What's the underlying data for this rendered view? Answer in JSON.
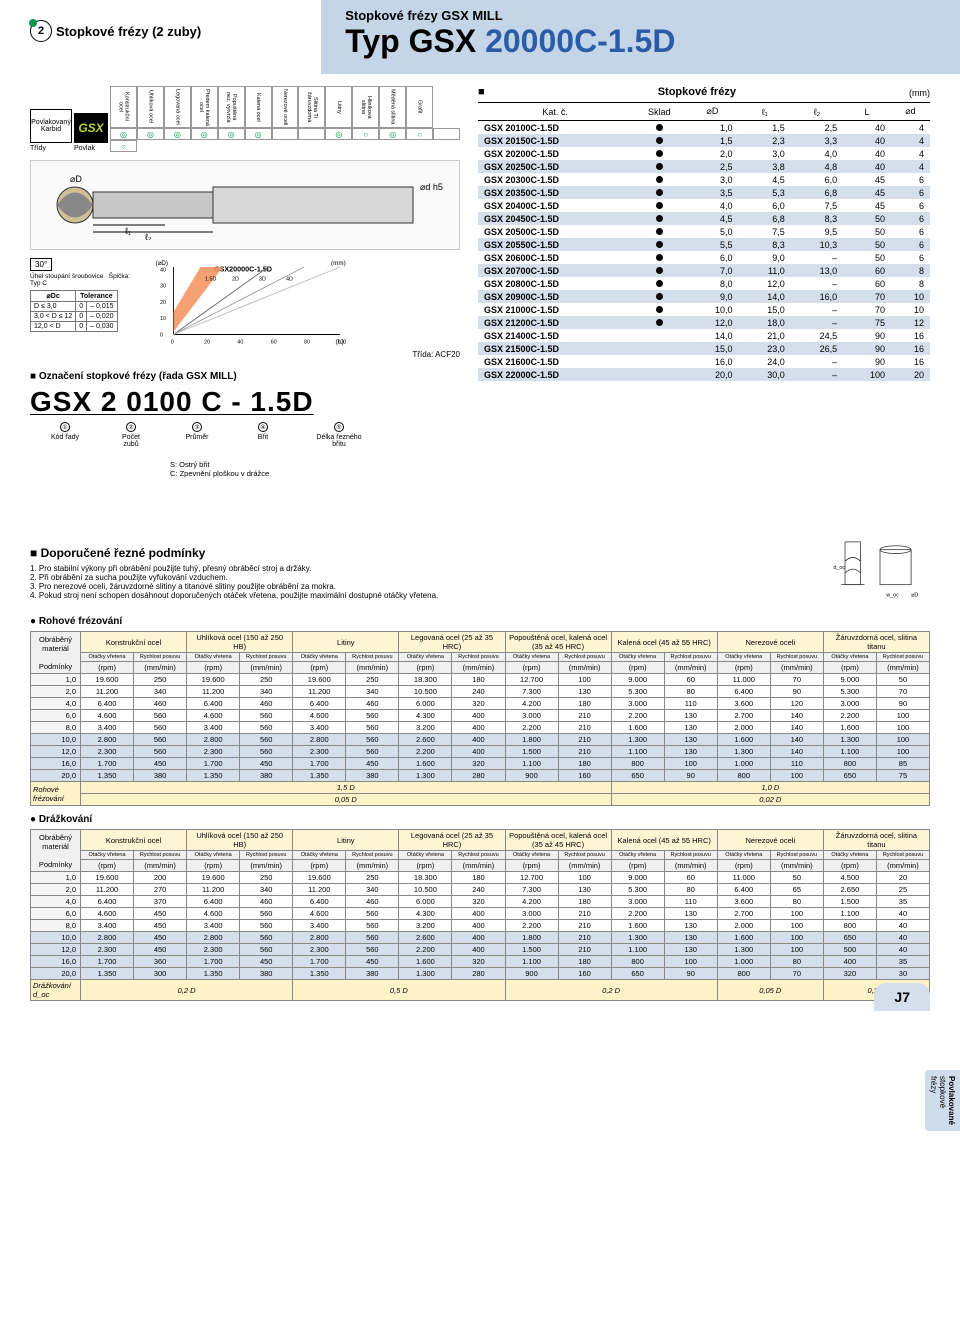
{
  "header": {
    "badge_num": "2",
    "section_title": "Stopkové frézy (2 zuby)",
    "brand_sub": "Stopkové frézy GSX MILL",
    "brand_main_black": "Typ GSX ",
    "brand_main_blue": "20000C-1.5D"
  },
  "materials": {
    "tridy_label": "Třídy",
    "povlak_label": "Povlak",
    "badge_labels": [
      "Povlakovaný",
      "Karbid"
    ],
    "gsx_g": "GS",
    "gsx_x": "X",
    "headers": [
      "Konstrukční ocel",
      "Uhlíková ocel",
      "Legovaná ocel",
      "Předem kalená ocel",
      "Popuštěná nez. vytvrzlá",
      "Kalená ocel",
      "Nerezové oceli",
      "Slitina Ti žáruvzdorná",
      "Litiny",
      "Hliníková slitina",
      "Měděná slitina",
      "Grafit"
    ],
    "sub_row": [
      "",
      "",
      "",
      "",
      "",
      "45-55 HRC",
      "55-60 HRC",
      "60-65 HRC",
      "",
      "",
      "",
      "",
      "",
      ""
    ],
    "circles": [
      "◎",
      "◎",
      "◎",
      "◎",
      "◎",
      "◎",
      "",
      "",
      "◎",
      "○",
      "◎",
      "○",
      "",
      "○"
    ]
  },
  "tool_dims": {
    "d_label": "⌀D",
    "l1": "ℓ₁",
    "l2": "ℓ₂",
    "L_label": "L",
    "dh5": "⌀d h5"
  },
  "tolerance": {
    "angle_label": "30°",
    "helix_label": "Úhel stoupání šroubovice",
    "tip_label": "Špička:",
    "tip_val": "Typ C",
    "dc_label": "⌀Dc",
    "tol_label": "Tolerance",
    "rows": [
      [
        "D ≤ 3,0",
        "0",
        "– 0,015"
      ],
      [
        "3,0 < D ≤ 12",
        "0",
        "– 0,020"
      ],
      [
        "12,0 < D",
        "0",
        "– 0,030"
      ]
    ]
  },
  "chart": {
    "title": "GSX20000C-1.5D",
    "series_1_5d": "1.5D",
    "series_2d": "2D",
    "series_3d": "3D",
    "series_4d": "4D",
    "ylabel": "(⌀D)",
    "xlabel": "(ℓ₁)",
    "unit": "(mm)",
    "yticks": [
      0,
      10,
      20,
      30,
      40
    ],
    "xticks": [
      0,
      20,
      40,
      60,
      80,
      100
    ],
    "band_color": "#f5915a",
    "line1_color": "#333",
    "line2_color": "#666",
    "line3_color": "#999"
  },
  "trida_line": "Třída: ACF20",
  "designation": {
    "header": "Označení stopkové frézy (řada GSX MILL)",
    "code": "GSX 2 0100 C - 1.5D",
    "parts": [
      {
        "n": "①",
        "l1": "Kód řady",
        "l2": ""
      },
      {
        "n": "②",
        "l1": "Počet",
        "l2": "zubů"
      },
      {
        "n": "③",
        "l1": "Průměr",
        "l2": ""
      },
      {
        "n": "④",
        "l1": "Břit",
        "l2": ""
      },
      {
        "n": "⑤",
        "l1": "Délka řezného",
        "l2": "břitu"
      }
    ],
    "legend_s": "S: Ostrý břit",
    "legend_c": "C: Zpevnění ploškou v drážce"
  },
  "stock": {
    "title": "Stopkové frézy",
    "unit": "(mm)",
    "cols": [
      "Kat. č.",
      "Sklad",
      "⌀D",
      "ℓ₁",
      "ℓ₂",
      "L",
      "⌀d"
    ],
    "rows": [
      {
        "p": "GSX 20100C-1.5D",
        "s": true,
        "d": "1,0",
        "l1": "1,5",
        "l2": "2,5",
        "L": "40",
        "dd": "4",
        "sh": false
      },
      {
        "p": "GSX 20150C-1.5D",
        "s": true,
        "d": "1,5",
        "l1": "2,3",
        "l2": "3,3",
        "L": "40",
        "dd": "4",
        "sh": true
      },
      {
        "p": "GSX 20200C-1.5D",
        "s": true,
        "d": "2,0",
        "l1": "3,0",
        "l2": "4,0",
        "L": "40",
        "dd": "4",
        "sh": false
      },
      {
        "p": "GSX 20250C-1.5D",
        "s": true,
        "d": "2,5",
        "l1": "3,8",
        "l2": "4,8",
        "L": "40",
        "dd": "4",
        "sh": true
      },
      {
        "p": "GSX 20300C-1.5D",
        "s": true,
        "d": "3,0",
        "l1": "4,5",
        "l2": "6,0",
        "L": "45",
        "dd": "6",
        "sh": false
      },
      {
        "p": "GSX 20350C-1.5D",
        "s": true,
        "d": "3,5",
        "l1": "5,3",
        "l2": "6,8",
        "L": "45",
        "dd": "6",
        "sh": true
      },
      {
        "p": "GSX 20400C-1.5D",
        "s": true,
        "d": "4,0",
        "l1": "6,0",
        "l2": "7,5",
        "L": "45",
        "dd": "6",
        "sh": false
      },
      {
        "p": "GSX 20450C-1.5D",
        "s": true,
        "d": "4,5",
        "l1": "6,8",
        "l2": "8,3",
        "L": "50",
        "dd": "6",
        "sh": true
      },
      {
        "p": "GSX 20500C-1.5D",
        "s": true,
        "d": "5,0",
        "l1": "7,5",
        "l2": "9,5",
        "L": "50",
        "dd": "6",
        "sh": false
      },
      {
        "p": "GSX 20550C-1.5D",
        "s": true,
        "d": "5,5",
        "l1": "8,3",
        "l2": "10,3",
        "L": "50",
        "dd": "6",
        "sh": true
      },
      {
        "p": "GSX 20600C-1.5D",
        "s": true,
        "d": "6,0",
        "l1": "9,0",
        "l2": "–",
        "L": "50",
        "dd": "6",
        "sh": false
      },
      {
        "p": "GSX 20700C-1.5D",
        "s": true,
        "d": "7,0",
        "l1": "11,0",
        "l2": "13,0",
        "L": "60",
        "dd": "8",
        "sh": true
      },
      {
        "p": "GSX 20800C-1.5D",
        "s": true,
        "d": "8,0",
        "l1": "12,0",
        "l2": "–",
        "L": "60",
        "dd": "8",
        "sh": false
      },
      {
        "p": "GSX 20900C-1.5D",
        "s": true,
        "d": "9,0",
        "l1": "14,0",
        "l2": "16,0",
        "L": "70",
        "dd": "10",
        "sh": true
      },
      {
        "p": "GSX 21000C-1.5D",
        "s": true,
        "d": "10,0",
        "l1": "15,0",
        "l2": "–",
        "L": "70",
        "dd": "10",
        "sh": false
      },
      {
        "p": "GSX 21200C-1.5D",
        "s": true,
        "d": "12,0",
        "l1": "18,0",
        "l2": "–",
        "L": "75",
        "dd": "12",
        "sh": true
      },
      {
        "p": "GSX 21400C-1.5D",
        "s": false,
        "d": "14,0",
        "l1": "21,0",
        "l2": "24,5",
        "L": "90",
        "dd": "16",
        "sh": false
      },
      {
        "p": "GSX 21500C-1.5D",
        "s": false,
        "d": "15,0",
        "l1": "23,0",
        "l2": "26,5",
        "L": "90",
        "dd": "16",
        "sh": true
      },
      {
        "p": "GSX 21600C-1.5D",
        "s": false,
        "d": "16,0",
        "l1": "24,0",
        "l2": "–",
        "L": "90",
        "dd": "16",
        "sh": false
      },
      {
        "p": "GSX 22000C-1.5D",
        "s": false,
        "d": "20,0",
        "l1": "30,0",
        "l2": "–",
        "L": "100",
        "dd": "20",
        "sh": true
      }
    ]
  },
  "recommended": {
    "title": "Doporučené řezné podmínky",
    "notes": [
      "1. Pro stabilní výkony při obrábění použijte tuhý, přesný obráběcí stroj a držáky.",
      "2. Při obrábění za sucha použijte vyfukování vzduchem.",
      "3. Pro nerezové oceli, žáruvzdorné slitiny a titanové slitiny použijte obrábění za mokra.",
      "4. Pokud stroj není schopen dosáhnout doporučených otáček vřetena, použijte maximální dostupné otáčky vřetena."
    ],
    "doc_label": "d_oc",
    "woc_label": "w_oc",
    "dD_label": "⌀D"
  },
  "cut_materials": [
    "Konstrukční ocel",
    "Uhlíková ocel (150 až 250 HB)",
    "Litiny",
    "Legovaná ocel (25 až 35 HRC)",
    "Popouštěná ocel, kalená ocel (35 až 45 HRC)",
    "Kalená ocel (45 až 55 HRC)",
    "Nerezové oceli",
    "Žáruvzdorná ocel, slitina titanu"
  ],
  "cut_labels": {
    "material": "Obráběný materiál",
    "conditions": "Podmínky",
    "dD": "⌀D (mm)",
    "rpm_lbl": "Otáčky vřetena",
    "rpm_unit": "(rpm)",
    "feed_lbl": "Rychlost posuvu",
    "feed_unit": "(mm/min)"
  },
  "corner_milling": {
    "title": "Rohové frézování",
    "footer_left_lbl": "Rohové frézování",
    "doc_lbl": "d_oc",
    "woc_lbl": "w_oc",
    "footer_vals": [
      "1,5 D",
      "1,0 D",
      "0,05 D",
      "0,02 D"
    ],
    "rows": [
      {
        "d": "1,0",
        "v": [
          "19.600",
          "250",
          "19.600",
          "250",
          "19.600",
          "250",
          "18.300",
          "180",
          "12.700",
          "100",
          "9.000",
          "60",
          "11.000",
          "70",
          "9.000",
          "50"
        ],
        "sh": false
      },
      {
        "d": "2,0",
        "v": [
          "11.200",
          "340",
          "11.200",
          "340",
          "11.200",
          "340",
          "10.500",
          "240",
          "7.300",
          "130",
          "5.300",
          "80",
          "6.400",
          "90",
          "5.300",
          "70"
        ],
        "sh": false
      },
      {
        "d": "4,0",
        "v": [
          "6.400",
          "460",
          "6.400",
          "460",
          "6.400",
          "460",
          "6.000",
          "320",
          "4.200",
          "180",
          "3.000",
          "110",
          "3.600",
          "120",
          "3.000",
          "90"
        ],
        "sh": false
      },
      {
        "d": "6,0",
        "v": [
          "4.600",
          "560",
          "4.600",
          "560",
          "4.600",
          "560",
          "4.300",
          "400",
          "3.000",
          "210",
          "2.200",
          "130",
          "2.700",
          "140",
          "2.200",
          "100"
        ],
        "sh": false
      },
      {
        "d": "8,0",
        "v": [
          "3.400",
          "560",
          "3.400",
          "560",
          "3.400",
          "560",
          "3.200",
          "400",
          "2.200",
          "210",
          "1.600",
          "130",
          "2.000",
          "140",
          "1.600",
          "100"
        ],
        "sh": false
      },
      {
        "d": "10,0",
        "v": [
          "2.800",
          "560",
          "2.800",
          "560",
          "2.800",
          "560",
          "2.600",
          "400",
          "1.800",
          "210",
          "1.300",
          "130",
          "1.600",
          "140",
          "1.300",
          "100"
        ],
        "sh": true
      },
      {
        "d": "12,0",
        "v": [
          "2.300",
          "560",
          "2.300",
          "560",
          "2.300",
          "560",
          "2.200",
          "400",
          "1.500",
          "210",
          "1.100",
          "130",
          "1.300",
          "140",
          "1.100",
          "100"
        ],
        "sh": true
      },
      {
        "d": "16,0",
        "v": [
          "1.700",
          "450",
          "1.700",
          "450",
          "1.700",
          "450",
          "1.600",
          "320",
          "1.100",
          "180",
          "800",
          "100",
          "1.000",
          "110",
          "800",
          "85"
        ],
        "sh": true
      },
      {
        "d": "20,0",
        "v": [
          "1.350",
          "380",
          "1.350",
          "380",
          "1.350",
          "380",
          "1.300",
          "280",
          "900",
          "160",
          "650",
          "90",
          "800",
          "100",
          "650",
          "75"
        ],
        "sh": true
      }
    ]
  },
  "slotting": {
    "title": "Drážkování",
    "footer_left_lbl": "Drážkování",
    "doc_lbl": "d_oc",
    "footer_vals": [
      "0,2 D",
      "0,5 D",
      "0,2 D",
      "0,05 D",
      "0,2 D"
    ],
    "footer_spans": [
      2,
      2,
      2,
      1,
      1
    ],
    "rows": [
      {
        "d": "1,0",
        "v": [
          "19.600",
          "200",
          "19.600",
          "250",
          "19.600",
          "250",
          "18.300",
          "180",
          "12.700",
          "100",
          "9.000",
          "60",
          "11.000",
          "50",
          "4.500",
          "20"
        ],
        "sh": false
      },
      {
        "d": "2,0",
        "v": [
          "11.200",
          "270",
          "11.200",
          "340",
          "11.200",
          "340",
          "10.500",
          "240",
          "7.300",
          "130",
          "5.300",
          "80",
          "6.400",
          "65",
          "2.650",
          "25"
        ],
        "sh": false
      },
      {
        "d": "4,0",
        "v": [
          "6.400",
          "370",
          "6.400",
          "460",
          "6.400",
          "460",
          "6.000",
          "320",
          "4.200",
          "180",
          "3.000",
          "110",
          "3.600",
          "80",
          "1.500",
          "35"
        ],
        "sh": false
      },
      {
        "d": "6,0",
        "v": [
          "4.600",
          "450",
          "4.600",
          "560",
          "4.600",
          "560",
          "4.300",
          "400",
          "3.000",
          "210",
          "2.200",
          "130",
          "2.700",
          "100",
          "1.100",
          "40"
        ],
        "sh": false
      },
      {
        "d": "8,0",
        "v": [
          "3.400",
          "450",
          "3.400",
          "560",
          "3.400",
          "560",
          "3.200",
          "400",
          "2.200",
          "210",
          "1.600",
          "130",
          "2.000",
          "100",
          "800",
          "40"
        ],
        "sh": false
      },
      {
        "d": "10,0",
        "v": [
          "2.800",
          "450",
          "2.800",
          "560",
          "2.800",
          "560",
          "2.600",
          "400",
          "1.800",
          "210",
          "1.300",
          "130",
          "1.600",
          "100",
          "650",
          "40"
        ],
        "sh": true
      },
      {
        "d": "12,0",
        "v": [
          "2.300",
          "450",
          "2.300",
          "560",
          "2.300",
          "560",
          "2.200",
          "400",
          "1.500",
          "210",
          "1.100",
          "130",
          "1.300",
          "100",
          "500",
          "40"
        ],
        "sh": true
      },
      {
        "d": "16,0",
        "v": [
          "1.700",
          "360",
          "1.700",
          "450",
          "1.700",
          "450",
          "1.600",
          "320",
          "1.100",
          "180",
          "800",
          "100",
          "1.000",
          "80",
          "400",
          "35"
        ],
        "sh": true
      },
      {
        "d": "20,0",
        "v": [
          "1.350",
          "300",
          "1.350",
          "380",
          "1.350",
          "380",
          "1.300",
          "280",
          "900",
          "160",
          "650",
          "90",
          "800",
          "70",
          "320",
          "30"
        ],
        "sh": true
      }
    ]
  },
  "side_tab": {
    "line1": "Povlakované",
    "line2": "stopkové frézy"
  },
  "page_num": "J7"
}
